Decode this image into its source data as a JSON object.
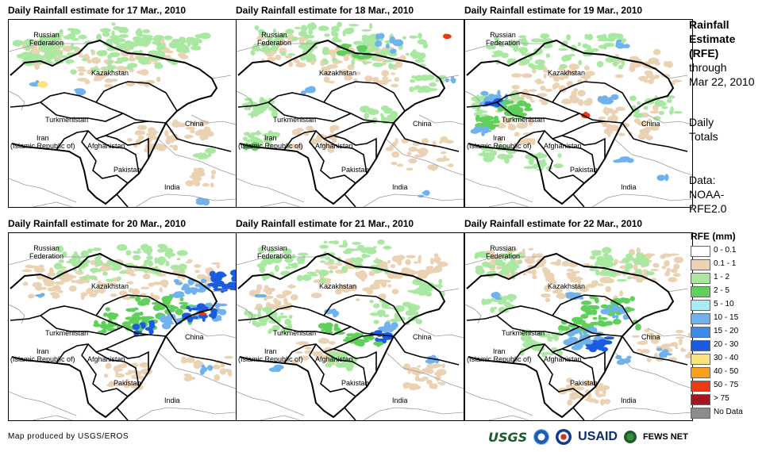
{
  "panels": [
    {
      "title": "Daily Rainfall estimate for 17 Mar., 2010"
    },
    {
      "title": "Daily Rainfall estimate for 18 Mar., 2010"
    },
    {
      "title": "Daily Rainfall estimate for 19 Mar., 2010"
    },
    {
      "title": "Daily Rainfall estimate for 20 Mar., 2010"
    },
    {
      "title": "Daily Rainfall estimate for 21 Mar., 2010"
    },
    {
      "title": "Daily Rainfall estimate for 22 Mar., 2010"
    }
  ],
  "map_labels": {
    "russia": "Russian\nFederation",
    "kazakhstan": "Kazakhstan",
    "turkmenistan": "Turkmenistan",
    "iran": "Iran\n(Islamic Republic of)",
    "afghanistan": "Afghanistan",
    "pakistan": "Pakistan",
    "china": "China",
    "india": "India"
  },
  "sidebar": {
    "title_line1": "Rainfall",
    "title_line2": "Estimate",
    "title_line3": "(RFE)",
    "through": "through",
    "date": "Mar 22, 2010",
    "totals_1": "Daily",
    "totals_2": "Totals",
    "data_1": "Data:",
    "data_2": "NOAA-",
    "data_3": "RFE2.0"
  },
  "legend": {
    "title": "RFE (mm)",
    "items": [
      {
        "label": "0 - 0.1",
        "color": "#ffffff"
      },
      {
        "label": "0.1 - 1",
        "color": "#ead2b3"
      },
      {
        "label": "1 - 2",
        "color": "#a9e8a0"
      },
      {
        "label": "2 - 5",
        "color": "#5fd05a"
      },
      {
        "label": "5 - 10",
        "color": "#a8ecf4"
      },
      {
        "label": "10 - 15",
        "color": "#6fb2ee"
      },
      {
        "label": "15 - 20",
        "color": "#3b8cea"
      },
      {
        "label": "20 - 30",
        "color": "#1a5ce0"
      },
      {
        "label": "30 - 40",
        "color": "#fbe27a"
      },
      {
        "label": "40 - 50",
        "color": "#f7a21a"
      },
      {
        "label": "50 - 75",
        "color": "#ec3b12"
      },
      {
        "label": "> 75",
        "color": "#a5151c"
      },
      {
        "label": "No Data",
        "color": "#8c8c8c"
      }
    ]
  },
  "footer": {
    "credit": "Map produced by USGS/EROS",
    "usgs": "USGS",
    "usaid": "USAID",
    "fews": "FEWS NET"
  }
}
